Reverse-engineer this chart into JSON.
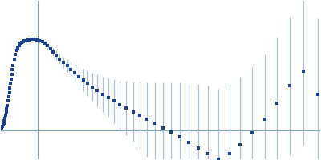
{
  "background_color": "#ffffff",
  "data_color": "#1a3f8f",
  "ecolor": "#a8c0d8",
  "hline_color": "#6ea8c8",
  "vline_color": "#6ea8c8",
  "marker_size": 2.2,
  "elinewidth": 0.9,
  "hline_lw": 0.8,
  "vline_lw": 0.8,
  "xlim": [
    0.005,
    0.52
  ],
  "ylim": [
    -0.05,
    0.22
  ],
  "hline_y": 0.0,
  "vline_x": 0.065,
  "figsize": [
    4.0,
    2.0
  ],
  "dpi": 100,
  "x_values": [
    0.006,
    0.007,
    0.008,
    0.009,
    0.01,
    0.011,
    0.012,
    0.013,
    0.014,
    0.015,
    0.016,
    0.017,
    0.018,
    0.019,
    0.02,
    0.021,
    0.022,
    0.023,
    0.024,
    0.025,
    0.027,
    0.029,
    0.031,
    0.033,
    0.035,
    0.037,
    0.039,
    0.041,
    0.043,
    0.046,
    0.049,
    0.052,
    0.055,
    0.058,
    0.061,
    0.064,
    0.068,
    0.072,
    0.076,
    0.08,
    0.085,
    0.09,
    0.095,
    0.1,
    0.106,
    0.112,
    0.118,
    0.124,
    0.131,
    0.138,
    0.145,
    0.153,
    0.161,
    0.169,
    0.178,
    0.187,
    0.197,
    0.207,
    0.218,
    0.229,
    0.241,
    0.253,
    0.266,
    0.279,
    0.293,
    0.308,
    0.323,
    0.339,
    0.356,
    0.373,
    0.391,
    0.41,
    0.43,
    0.45,
    0.471,
    0.493,
    0.516
  ],
  "y_values": [
    0.002,
    0.004,
    0.006,
    0.009,
    0.012,
    0.016,
    0.02,
    0.025,
    0.03,
    0.036,
    0.042,
    0.049,
    0.056,
    0.063,
    0.071,
    0.079,
    0.087,
    0.095,
    0.103,
    0.11,
    0.12,
    0.128,
    0.135,
    0.14,
    0.144,
    0.147,
    0.149,
    0.15,
    0.151,
    0.152,
    0.153,
    0.153,
    0.154,
    0.155,
    0.154,
    0.153,
    0.152,
    0.15,
    0.147,
    0.143,
    0.138,
    0.133,
    0.127,
    0.121,
    0.115,
    0.109,
    0.103,
    0.097,
    0.091,
    0.085,
    0.079,
    0.073,
    0.067,
    0.061,
    0.055,
    0.049,
    0.043,
    0.037,
    0.031,
    0.025,
    0.018,
    0.011,
    0.004,
    -0.004,
    -0.012,
    -0.021,
    -0.03,
    -0.04,
    -0.05,
    -0.04,
    -0.025,
    -0.005,
    0.018,
    0.045,
    0.075,
    0.1,
    0.06
  ],
  "y_errors": [
    0.0005,
    0.0005,
    0.0005,
    0.0006,
    0.0007,
    0.0008,
    0.0009,
    0.001,
    0.001,
    0.001,
    0.001,
    0.001,
    0.001,
    0.001,
    0.001,
    0.001,
    0.001,
    0.001,
    0.002,
    0.002,
    0.002,
    0.002,
    0.002,
    0.002,
    0.002,
    0.002,
    0.002,
    0.002,
    0.002,
    0.002,
    0.003,
    0.003,
    0.003,
    0.003,
    0.003,
    0.003,
    0.004,
    0.004,
    0.005,
    0.005,
    0.006,
    0.007,
    0.008,
    0.009,
    0.01,
    0.011,
    0.013,
    0.015,
    0.017,
    0.019,
    0.021,
    0.024,
    0.027,
    0.03,
    0.033,
    0.037,
    0.041,
    0.046,
    0.051,
    0.057,
    0.063,
    0.07,
    0.077,
    0.085,
    0.093,
    0.1,
    0.108,
    0.115,
    0.12,
    0.118,
    0.115,
    0.112,
    0.11,
    0.112,
    0.118,
    0.125,
    0.13
  ]
}
